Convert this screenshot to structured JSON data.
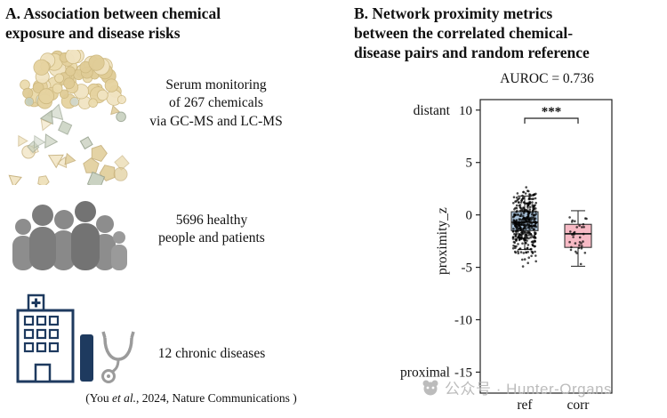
{
  "panel_a": {
    "title": "A.  Association between chemical\nexposure and disease risks",
    "serum_text": "Serum monitoring\nof 267 chemicals\nvia GC-MS and LC-MS",
    "people_text": "5696 healthy\npeople and patients",
    "disease_text": "12 chronic diseases",
    "citation_prefix": "(You ",
    "citation_italic": "et al.",
    "citation_suffix": ", 2024, Nature Communications )"
  },
  "panel_b": {
    "title": "B. Network proximity metrics\nbetween the correlated chemical-\ndisease pairs and random reference"
  },
  "watermark": "公众号 · Hunter-Organs",
  "chart_data": {
    "type": "boxplot",
    "title": "AUROC = 0.736",
    "ylabel": "proximity_z",
    "ylim": [
      -17,
      11
    ],
    "yticks": [
      10,
      5,
      0,
      -5,
      -10,
      -15
    ],
    "categories": [
      "ref",
      "corr"
    ],
    "axis_annotations": [
      {
        "label": "distant",
        "at": 10
      },
      {
        "label": "proximal",
        "at": -15
      }
    ],
    "significance": "***",
    "series": [
      {
        "name": "ref",
        "box_color": "#a9c2da",
        "whisker_high": 1.8,
        "q3": 0.3,
        "median": -0.7,
        "q1": -1.5,
        "whisker_low": -3.3,
        "points": {
          "n": 380,
          "mean": -0.8,
          "sd": 1.5,
          "min": -5.8,
          "max": 2.7
        }
      },
      {
        "name": "corr",
        "box_color": "#f7bac5",
        "whisker_high": 0.4,
        "q3": -0.9,
        "median": -1.8,
        "q1": -3.1,
        "whisker_low": -4.9,
        "points": {
          "n": 34,
          "mean": -2.0,
          "sd": 1.6,
          "min": -6.4,
          "max": 0.4
        }
      }
    ]
  }
}
